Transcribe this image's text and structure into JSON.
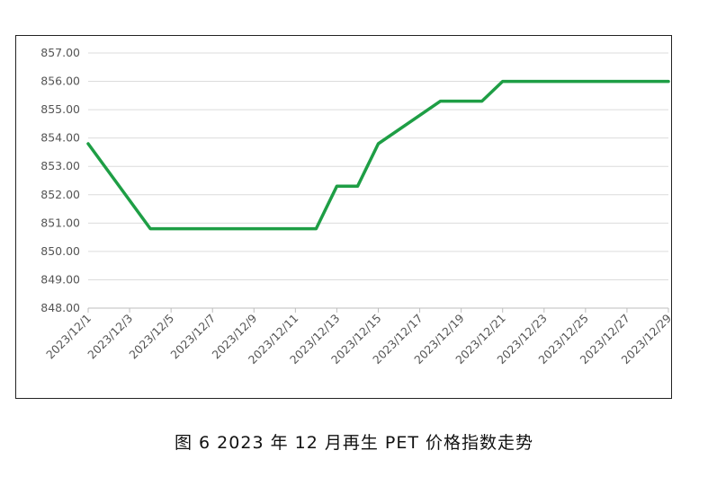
{
  "caption": "图 6  2023 年 12 月再生 PET 价格指数走势",
  "chart_data": {
    "type": "line",
    "title": "",
    "xlabel": "",
    "ylabel": "",
    "ylim": [
      848,
      857
    ],
    "y_ticks": [
      "857.00",
      "856.00",
      "855.00",
      "854.00",
      "853.00",
      "852.00",
      "851.00",
      "850.00",
      "849.00",
      "848.00"
    ],
    "x_tick_labels": [
      "2023/12/1",
      "2023/12/3",
      "2023/12/5",
      "2023/12/7",
      "2023/12/9",
      "2023/12/11",
      "2023/12/13",
      "2023/12/15",
      "2023/12/17",
      "2023/12/19",
      "2023/12/21",
      "2023/12/23",
      "2023/12/25",
      "2023/12/27",
      "2023/12/29"
    ],
    "grid": true,
    "line_color": "#1e9e45",
    "series": [
      {
        "x": [
          "2023/12/1",
          "2023/12/4",
          "2023/12/12",
          "2023/12/13",
          "2023/12/14",
          "2023/12/15",
          "2023/12/18",
          "2023/12/20",
          "2023/12/21",
          "2023/12/29"
        ],
        "values": [
          853.8,
          850.8,
          850.8,
          852.3,
          852.3,
          853.8,
          855.3,
          855.3,
          856.0,
          856.0
        ]
      }
    ]
  }
}
